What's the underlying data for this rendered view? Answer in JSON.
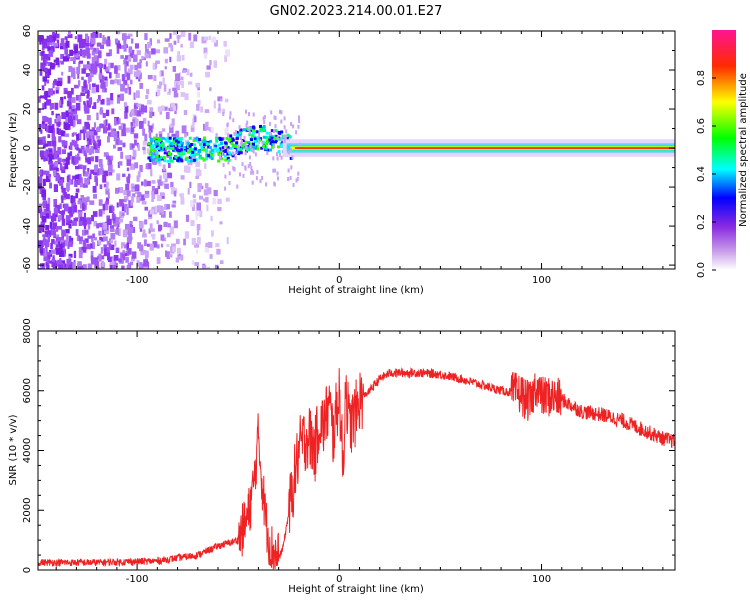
{
  "title": "GN02.2023.214.00.01.E27",
  "colors": {
    "snr_line": "#ee2222",
    "axis": "#000000"
  },
  "chart_data": [
    {
      "type": "heatmap",
      "xlabel": "Height of straight line (km)",
      "ylabel": "Frequency (Hz)",
      "xlim": [
        -149,
        166
      ],
      "ylim": [
        -62,
        60
      ],
      "x_ticks": [
        -100,
        0,
        100
      ],
      "y_ticks": [
        60,
        40,
        20,
        0,
        -20,
        -40,
        -60
      ],
      "colorbar": {
        "label": "Normalized spectral amplitude",
        "range": [
          0,
          1
        ],
        "ticks": [
          "0.0",
          "0.2",
          "0.4",
          "0.6",
          "0.8"
        ],
        "colormap": [
          "#ffffff",
          "#8a2be2",
          "#0000ff",
          "#00ffff",
          "#00ff00",
          "#ffff00",
          "#ff0000",
          "#ff1493"
        ]
      },
      "features": {
        "noise_region_x": [
          -149,
          -65
        ],
        "transition_x": [
          -95,
          -25
        ],
        "carrier_start_x": -25,
        "carrier_freq_hz": 0,
        "peak_frequency_near_x_minus45_hz": 6
      }
    },
    {
      "type": "line",
      "xlabel": "Height of straight line (km)",
      "ylabel": "SNR (10 * v/v)",
      "xlim": [
        -149,
        166
      ],
      "ylim": [
        0,
        8000
      ],
      "x_ticks": [
        -100,
        0,
        100
      ],
      "y_ticks": [
        0,
        2000,
        4000,
        6000,
        8000
      ],
      "series": [
        {
          "x": [
            -149,
            -120,
            -90,
            -70,
            -60,
            -50,
            -45,
            -42,
            -40,
            -38,
            -36,
            -34,
            -32,
            -30,
            -28,
            -26,
            -24,
            -22,
            -20,
            -18,
            -15,
            -12,
            -10,
            -8,
            -5,
            -3,
            0,
            2,
            3,
            5,
            8,
            10,
            15,
            20,
            25,
            30,
            40,
            50,
            60,
            70,
            80,
            90,
            92,
            95,
            97,
            100,
            105,
            110,
            120,
            130,
            140,
            150,
            160,
            166
          ],
          "y": [
            250,
            250,
            300,
            500,
            800,
            1000,
            1800,
            3000,
            4500,
            2800,
            1500,
            800,
            500,
            400,
            700,
            1500,
            2300,
            3200,
            4000,
            4300,
            4500,
            4000,
            5000,
            4800,
            5500,
            4500,
            6000,
            3200,
            6300,
            4800,
            5200,
            5700,
            6000,
            6400,
            6600,
            6600,
            6600,
            6550,
            6400,
            6200,
            6000,
            5900,
            5700,
            5600,
            6200,
            5800,
            5800,
            5700,
            5300,
            5200,
            5000,
            4700,
            4400,
            4300
          ]
        }
      ]
    }
  ]
}
